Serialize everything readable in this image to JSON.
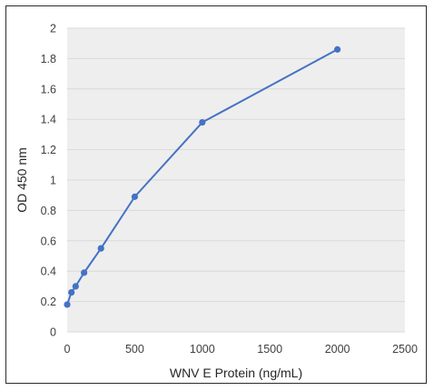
{
  "chart_data": {
    "type": "line",
    "title": "",
    "xlabel": "WNV E Protein (ng/mL)",
    "ylabel": "OD 450 nm",
    "xlim": [
      0,
      2500
    ],
    "ylim": [
      0,
      2
    ],
    "x_ticks": [
      "0",
      "500",
      "1000",
      "1500",
      "2000",
      "2500"
    ],
    "y_ticks": [
      "0",
      "0.2",
      "0.4",
      "0.6",
      "0.8",
      "1",
      "1.2",
      "1.4",
      "1.6",
      "1.8",
      "2"
    ],
    "grid": "horizontal",
    "legend": "none",
    "series": [
      {
        "x": [
          0,
          31.25,
          62.5,
          125,
          250,
          500,
          1000,
          2000
        ],
        "y": [
          0.18,
          0.26,
          0.3,
          0.39,
          0.55,
          0.89,
          1.38,
          1.86
        ],
        "color": "#4472C4"
      }
    ],
    "colors": {
      "plot_background": "#EEEEEE",
      "gridline": "#D9D9D9",
      "line": "#4472C4"
    }
  }
}
